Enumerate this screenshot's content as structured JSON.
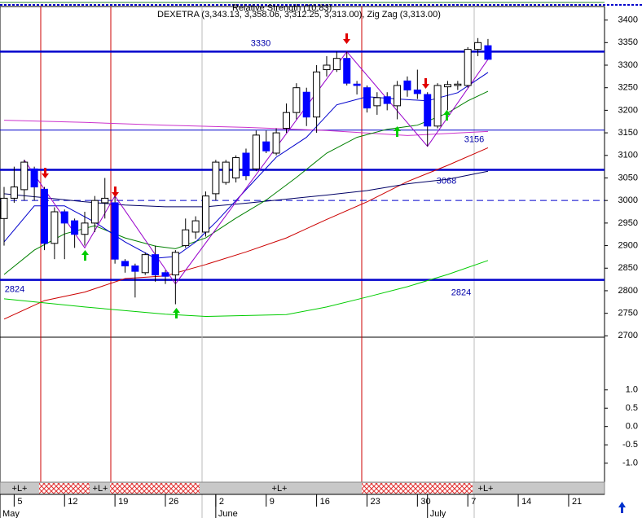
{
  "chart_data": {
    "type": "candlestick",
    "title": "DEXETRA (3,343.13, 3,358.06, 3,312.25, 3,313.00), Zig Zag (3,313.00)",
    "subtitle": "Relative Strength (10.83)",
    "open": [
      2960,
      3005,
      3024,
      3070,
      3025,
      2905,
      2975,
      2955,
      2925,
      2950,
      2995,
      2995,
      2865,
      2855,
      2840,
      2880,
      2840,
      2835,
      2900,
      2930,
      2930,
      3015,
      3040,
      3050,
      3105,
      3070,
      3130,
      3105,
      3160,
      3195,
      3240,
      3185,
      3290,
      3290,
      3315,
      3258,
      3250,
      3210,
      3230,
      3210,
      3265,
      3245,
      3235,
      3165,
      3252,
      3255,
      3255,
      3335,
      3343.13
    ],
    "high": [
      3030,
      3075,
      3090,
      3075,
      3030,
      2985,
      2980,
      2960,
      2975,
      3010,
      3050,
      3010,
      2870,
      2860,
      2885,
      2900,
      2845,
      2890,
      2960,
      2965,
      3020,
      3090,
      3090,
      3100,
      3115,
      3155,
      3155,
      3160,
      3215,
      3260,
      3250,
      3300,
      3320,
      3330,
      3330,
      3265,
      3255,
      3240,
      3240,
      3265,
      3275,
      3290,
      3240,
      3260,
      3265,
      3265,
      3340,
      3360,
      3358.06
    ],
    "low": [
      2900,
      2995,
      3000,
      3000,
      2890,
      2870,
      2870,
      2895,
      2900,
      2930,
      2960,
      2860,
      2840,
      2785,
      2835,
      2820,
      2815,
      2770,
      2895,
      2915,
      2920,
      3000,
      3035,
      3040,
      3045,
      3065,
      3105,
      3100,
      3150,
      3180,
      3165,
      3150,
      3275,
      3285,
      3255,
      3235,
      3195,
      3190,
      3200,
      3180,
      3230,
      3225,
      3120,
      3160,
      3200,
      3245,
      3250,
      3320,
      3312.25
    ],
    "close": [
      3005,
      3030,
      3085,
      3030,
      2905,
      2975,
      2950,
      2925,
      2950,
      3000,
      3005,
      2870,
      2855,
      2843,
      2880,
      2835,
      2832,
      2885,
      2935,
      2955,
      3010,
      3085,
      3085,
      3095,
      3055,
      3145,
      3110,
      3150,
      3195,
      3250,
      3185,
      3285,
      3300,
      3315,
      3260,
      3255,
      3205,
      3228,
      3215,
      3255,
      3245,
      3237,
      3165,
      3255,
      3257,
      3258,
      3335,
      3350,
      3313
    ],
    "colors": {
      "up": "#ffffff",
      "down": "#0000ff"
    },
    "xlim": [
      -0.404,
      59.56
    ],
    "ylim": [
      2697,
      3430
    ],
    "yticks": [
      2700,
      2750,
      2800,
      2850,
      2900,
      2950,
      3000,
      3050,
      3100,
      3150,
      3200,
      3250,
      3300,
      3350,
      3400
    ],
    "xticks": [
      {
        "value": 1,
        "label": "5"
      },
      {
        "value": 6,
        "label": "12"
      },
      {
        "value": 11,
        "label": "19"
      },
      {
        "value": 16,
        "label": "26"
      },
      {
        "value": 21,
        "label": "2"
      },
      {
        "value": 26,
        "label": "9"
      },
      {
        "value": 31,
        "label": "16"
      },
      {
        "value": 36,
        "label": "23"
      },
      {
        "value": 41,
        "label": "30"
      },
      {
        "value": 46,
        "label": "7"
      },
      {
        "value": 51,
        "label": "14"
      },
      {
        "value": 56,
        "label": "21"
      }
    ],
    "month_labels": [
      {
        "value": -0.4,
        "label": "May"
      },
      {
        "value": 21,
        "label": "June"
      },
      {
        "value": 42,
        "label": "July"
      }
    ],
    "levels": [
      {
        "value": 3330,
        "style": "thick"
      },
      {
        "value": 3156,
        "style": "thin"
      },
      {
        "value": 3068,
        "style": "thick"
      },
      {
        "value": 3000,
        "style": "dashed"
      },
      {
        "value": 2824,
        "style": "thick"
      }
    ],
    "lines": [
      {
        "color": "#cc33cc",
        "x": [
          0,
          8,
          16,
          24,
          32,
          40,
          48
        ],
        "values": [
          3178,
          3173,
          3167,
          3162,
          3155,
          3144,
          3153
        ]
      },
      {
        "color": "#cc0000",
        "x": [
          0,
          4,
          8,
          12,
          16,
          20,
          24,
          28,
          32,
          36,
          40,
          44,
          48
        ],
        "values": [
          2737,
          2778,
          2797,
          2827,
          2833,
          2858,
          2886,
          2917,
          2958,
          2997,
          3042,
          3078,
          3117
        ]
      },
      {
        "color": "#00cc00",
        "x": [
          0,
          8,
          16,
          20,
          28,
          32,
          36,
          40,
          44,
          48
        ],
        "values": [
          2782,
          2764,
          2748,
          2743,
          2747,
          2764,
          2786,
          2809,
          2836,
          2867
        ]
      },
      {
        "color": "#000066",
        "x": [
          0,
          4,
          8,
          12,
          16,
          20,
          24,
          28,
          32,
          36,
          40,
          44,
          48
        ],
        "values": [
          3015,
          3006,
          2997,
          2990,
          2986,
          2986,
          2994,
          3003,
          3012,
          3022,
          3037,
          3047,
          3065
        ]
      },
      {
        "color": "#008000",
        "x": [
          0,
          3,
          6,
          9,
          12,
          15,
          17,
          20,
          23,
          26,
          29,
          32,
          35,
          38,
          41,
          44,
          46,
          48
        ],
        "values": [
          2836,
          2890,
          2926,
          2944,
          2917,
          2899,
          2893,
          2917,
          2961,
          3001,
          3051,
          3105,
          3140,
          3158,
          3167,
          3194,
          3221,
          3242
        ]
      },
      {
        "color": "#0000cc",
        "x": [
          0,
          3,
          6,
          9,
          12,
          15,
          17,
          19,
          21,
          24,
          27,
          30,
          33,
          36,
          39,
          42,
          45,
          48
        ],
        "values": [
          2908,
          2988,
          2988,
          2952,
          2908,
          2872,
          2876,
          2908,
          2952,
          3024,
          3096,
          3140,
          3212,
          3230,
          3225,
          3221,
          3239,
          3284
        ]
      },
      {
        "color": "#9900cc",
        "x": [
          2,
          8,
          11,
          17,
          34,
          42,
          48
        ],
        "values": [
          3090,
          2895,
          3010,
          2815,
          3330,
          3120,
          3313
        ]
      }
    ],
    "indicator": {
      "ylim": [
        -1.52,
        2.44
      ],
      "yticks": [
        {
          "value": 1,
          "label": "1.0"
        },
        {
          "value": 0.5,
          "label": "0.5"
        },
        {
          "value": 0,
          "label": "0.0"
        },
        {
          "value": -0.5,
          "label": "-0.5"
        },
        {
          "value": -1,
          "label": "-1.0"
        }
      ]
    },
    "strip_labels": [
      "+L+",
      "+L+",
      "+L+",
      "+L+"
    ]
  }
}
